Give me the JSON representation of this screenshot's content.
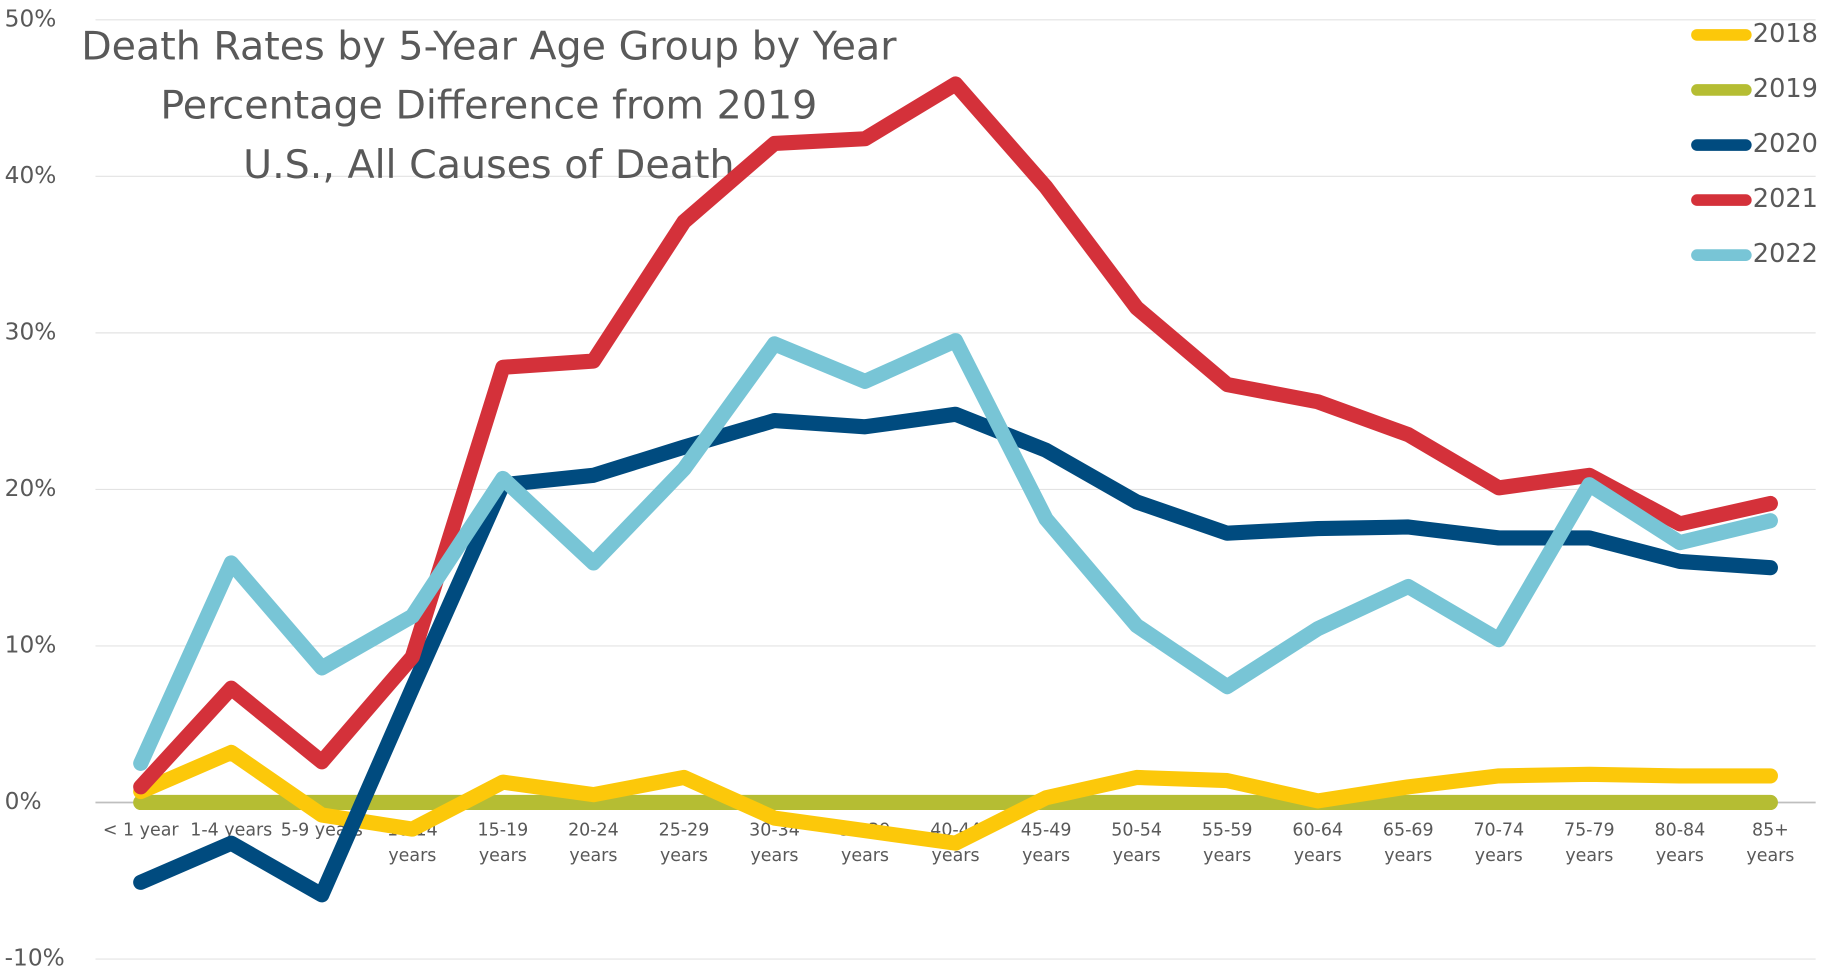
{
  "chart_data": {
    "type": "line",
    "title": [
      "Death Rates by 5-Year Age Group by Year",
      "Percentage Difference from 2019",
      "U.S., All Causes of Death"
    ],
    "categories": [
      "< 1 year",
      "1-4 years",
      "5-9 years",
      "10-14 years",
      "15-19 years",
      "20-24 years",
      "25-29 years",
      "30-34 years",
      "35-39 years",
      "40-44 years",
      "45-49 years",
      "50-54 years",
      "55-59 years",
      "60-64 years",
      "65-69 years",
      "70-74 years",
      "75-79 years",
      "80-84 years",
      "85+ years"
    ],
    "series": [
      {
        "name": "2018",
        "color": "#fcc80a",
        "values": [
          0.7,
          3.2,
          -0.8,
          -1.7,
          1.3,
          0.5,
          1.6,
          -1.0,
          -1.8,
          -2.6,
          0.3,
          1.6,
          1.4,
          0.1,
          1.0,
          1.7,
          1.8,
          1.7,
          1.7
        ]
      },
      {
        "name": "2019",
        "color": "#b5bd33",
        "values": [
          0,
          0,
          0,
          0,
          0,
          0,
          0,
          0,
          0,
          0,
          0,
          0,
          0,
          0,
          0,
          0,
          0,
          0,
          0
        ]
      },
      {
        "name": "2020",
        "color": "#004b7f",
        "values": [
          -5.1,
          -2.6,
          -5.9,
          7.3,
          20.3,
          20.9,
          22.7,
          24.4,
          24.0,
          24.8,
          22.5,
          19.2,
          17.2,
          17.5,
          17.6,
          16.9,
          16.9,
          15.4,
          15.0
        ]
      },
      {
        "name": "2021",
        "color": "#d4313a",
        "values": [
          1.0,
          7.3,
          2.6,
          9.3,
          27.8,
          28.2,
          37.1,
          42.1,
          42.4,
          45.9,
          39.3,
          31.6,
          26.7,
          25.6,
          23.5,
          20.1,
          20.9,
          17.8,
          19.1
        ]
      },
      {
        "name": "2022",
        "color": "#78c5d6",
        "values": [
          2.5,
          15.3,
          8.6,
          11.9,
          20.7,
          15.3,
          21.3,
          29.3,
          26.9,
          29.5,
          18.1,
          11.3,
          7.4,
          11.1,
          13.8,
          10.4,
          20.3,
          16.6,
          18.0
        ]
      }
    ],
    "ylim": [
      -10,
      50
    ],
    "yticks": [
      {
        "value": -10,
        "label": "-10%"
      },
      {
        "value": 0,
        "label": "0%"
      },
      {
        "value": 10,
        "label": "10%"
      },
      {
        "value": 20,
        "label": "20%"
      },
      {
        "value": 30,
        "label": "30%"
      },
      {
        "value": 40,
        "label": "40%"
      },
      {
        "value": 50,
        "label": "50%"
      }
    ],
    "grid": true,
    "legend": "top-right"
  }
}
